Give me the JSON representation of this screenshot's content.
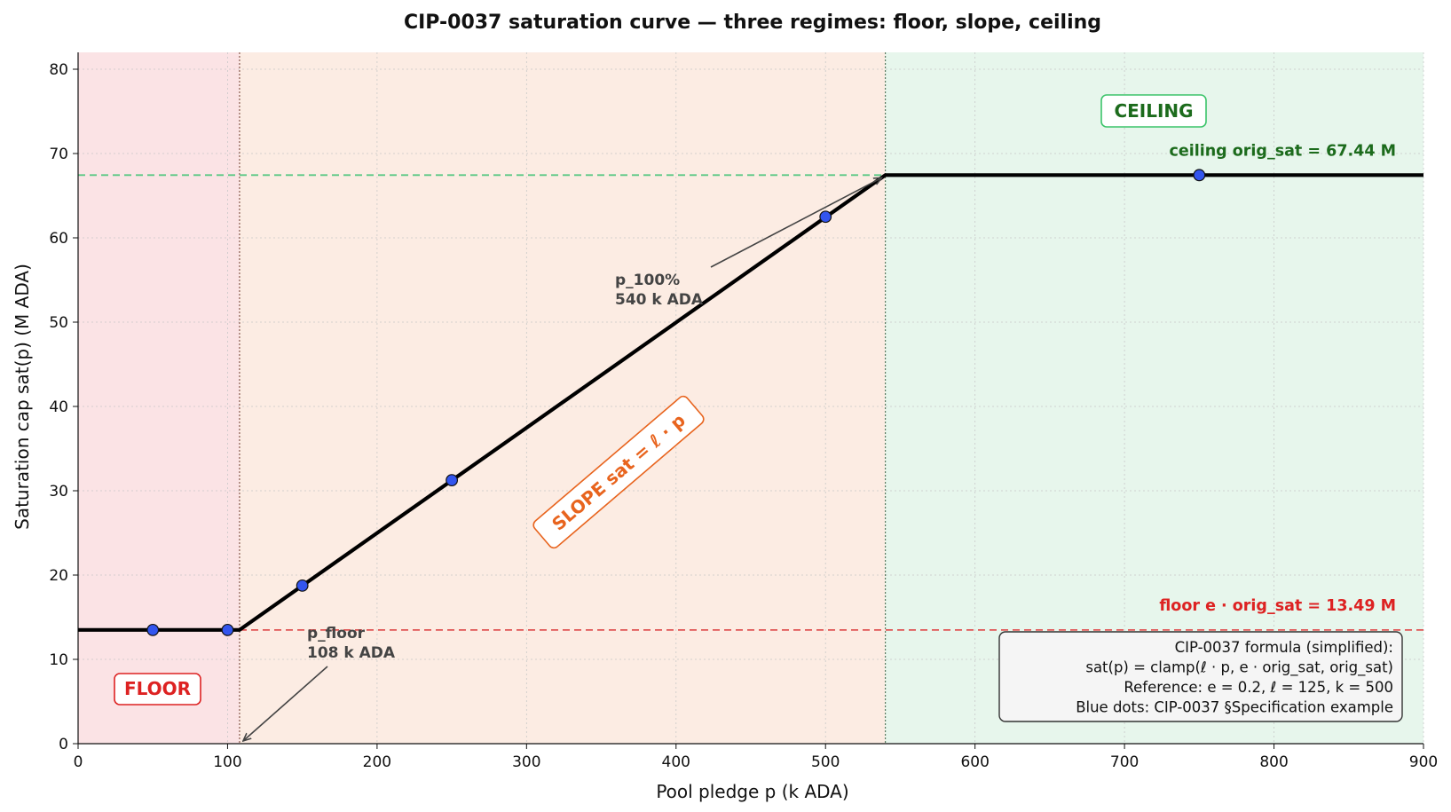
{
  "chart_data": {
    "type": "line",
    "title": "CIP-0037 saturation curve — three regimes: floor, slope, ceiling",
    "xlabel": "Pool pledge  p  (k ADA)",
    "ylabel": "Saturation cap  sat(p)  (M ADA)",
    "xlim": [
      0,
      900
    ],
    "ylim": [
      0,
      82
    ],
    "x_ticks": [
      0,
      100,
      200,
      300,
      400,
      500,
      600,
      700,
      800,
      900
    ],
    "y_ticks": [
      0,
      10,
      20,
      30,
      40,
      50,
      60,
      70,
      80
    ],
    "grid": true,
    "series": [
      {
        "values": [
          [
            0,
            13.49
          ],
          [
            108,
            13.49
          ],
          [
            540,
            67.44
          ],
          [
            900,
            67.44
          ]
        ],
        "color": "#000000"
      }
    ],
    "points": {
      "color": "#3355ee",
      "values": [
        [
          50,
          13.49
        ],
        [
          100,
          13.49
        ],
        [
          150,
          18.75
        ],
        [
          250,
          31.25
        ],
        [
          500,
          62.5
        ],
        [
          750,
          67.44
        ]
      ]
    },
    "regions": [
      {
        "x_range": [
          0,
          108
        ],
        "color": "#fbe3e5",
        "label": "FLOOR",
        "label_color": "#dd2222",
        "box_border": "#dd2222"
      },
      {
        "x_range": [
          108,
          540
        ],
        "color": "#fcece3",
        "label": "SLOPE  sat = ℓ · p",
        "label_color": "#e8641e",
        "box_border": "#e8641e"
      },
      {
        "x_range": [
          540,
          900
        ],
        "color": "#e7f6ec",
        "label": "CEILING",
        "label_color": "#1c6b1c",
        "box_border": "#3cc46a"
      }
    ],
    "hlines": [
      {
        "y": 67.44,
        "color": "#5ac884",
        "label": "ceiling  orig_sat = 67.44 M",
        "label_color": "#1c6b1c"
      },
      {
        "y": 13.49,
        "color": "#e05555",
        "label": "floor  e · orig_sat = 13.49 M",
        "label_color": "#dd2222"
      }
    ],
    "vlines": [
      {
        "x": 108,
        "color": "#8a5a50"
      },
      {
        "x": 540,
        "color": "#5a7a60"
      }
    ],
    "annotations": [
      {
        "lines": [
          "p_100%",
          "540 k ADA"
        ],
        "x": 540,
        "y": 67.44
      },
      {
        "lines": [
          "p_floor",
          "108 k ADA"
        ],
        "x": 108,
        "y": 0
      }
    ],
    "legend": {
      "placement": "lower-right",
      "lines": [
        "CIP-0037 formula (simplified):",
        "sat(p) = clamp(ℓ · p,  e · orig_sat,  orig_sat)",
        "Reference: e = 0.2,  ℓ = 125,  k = 500",
        "Blue dots: CIP-0037 §Specification example"
      ]
    }
  }
}
